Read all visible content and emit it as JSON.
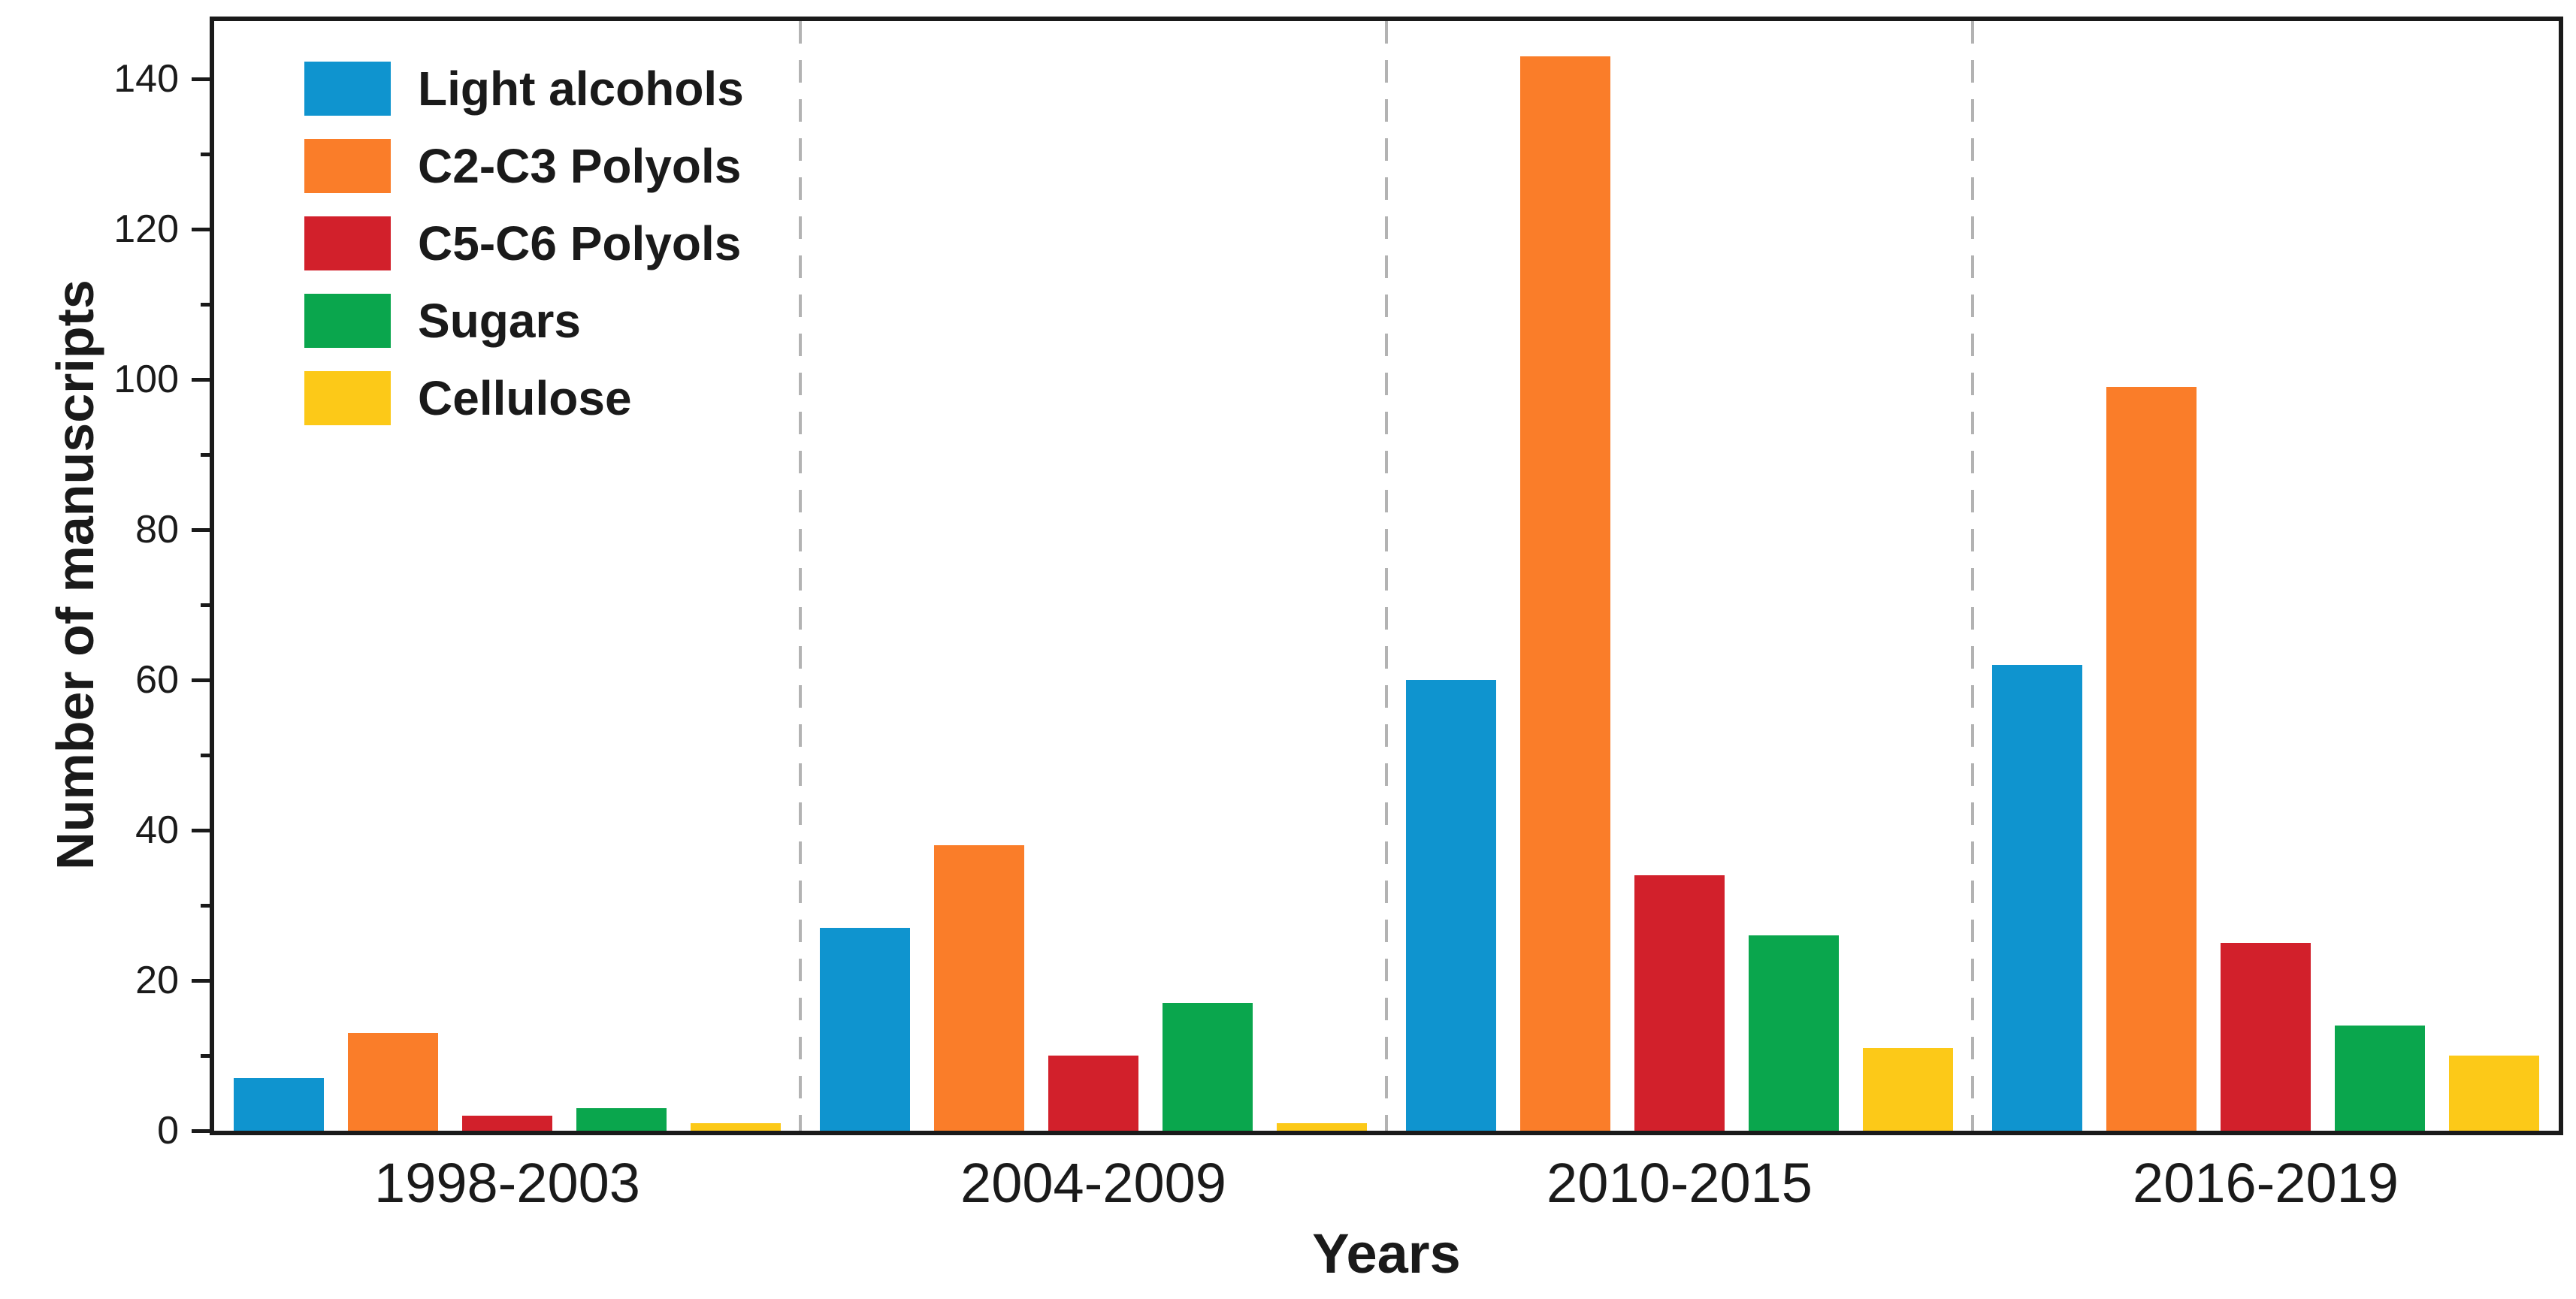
{
  "chart_data": {
    "type": "bar",
    "title": "",
    "xlabel": "Years",
    "ylabel": "Number of manuscripts",
    "categories": [
      "1998-2003",
      "2004-2009",
      "2010-2015",
      "2016-2019"
    ],
    "series": [
      {
        "name": "Light alcohols",
        "color": "#0f94cf",
        "values": [
          7,
          27,
          60,
          62
        ]
      },
      {
        "name": "C2-C3 Polyols",
        "color": "#fa7d29",
        "values": [
          13,
          38,
          143,
          99
        ]
      },
      {
        "name": "C5-C6 Polyols",
        "color": "#d2202b",
        "values": [
          2,
          10,
          34,
          25
        ]
      },
      {
        "name": "Sugars",
        "color": "#0aa64d",
        "values": [
          3,
          17,
          26,
          14
        ]
      },
      {
        "name": "Cellulose",
        "color": "#fcc918",
        "values": [
          1,
          1,
          11,
          10
        ]
      }
    ],
    "ylim": [
      0,
      148
    ],
    "yticks_major": [
      0,
      20,
      40,
      60,
      80,
      100,
      120,
      140
    ],
    "yticks_minor": [
      10,
      30,
      50,
      70,
      90,
      110,
      130
    ],
    "legend_position": "top-left",
    "grid": false,
    "group_separators": true,
    "axis_color": "#1a1a1a",
    "separator_color": "#b3b3b3"
  }
}
